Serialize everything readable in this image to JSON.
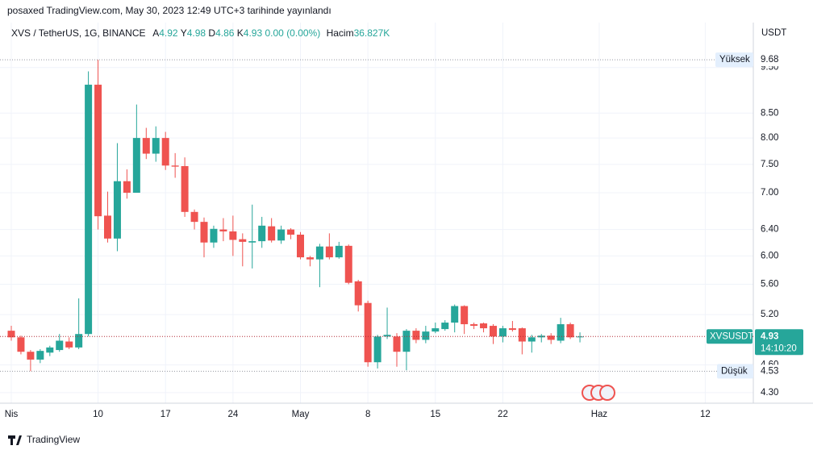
{
  "publisher": "posaxed TradingView.com, May 30, 2023 12:49 UTC+3 tarihinde yayınlandı",
  "footer": "TradingView",
  "chart_data": {
    "type": "candlestick",
    "symbol": "XVS / TetherUS, 1G, BINANCE",
    "ohlc_letters": [
      "A",
      "Y",
      "D",
      "K"
    ],
    "change": "0.00 (0.00%)",
    "volume_label": "Hacim",
    "volume": "36.827K",
    "y_axis_label": "USDT",
    "ticker": "XVSUSDT",
    "countdown": "14:10:20",
    "high_label": "Yüksek",
    "low_label": "Düşük",
    "log": true,
    "grid": true,
    "up_color": "#26a69a",
    "down_color": "#ef5350",
    "categories": [
      "Nis",
      null,
      null,
      null,
      null,
      null,
      null,
      null,
      null,
      "10",
      null,
      null,
      null,
      null,
      null,
      null,
      "17",
      null,
      null,
      null,
      null,
      null,
      null,
      "24",
      null,
      null,
      null,
      null,
      null,
      null,
      "May",
      null,
      null,
      null,
      null,
      null,
      null,
      "8",
      null,
      null,
      null,
      null,
      null,
      null,
      "15",
      null,
      null,
      null,
      null,
      null,
      null,
      "22",
      null,
      null,
      null,
      null,
      null,
      null,
      null,
      null,
      null,
      "Haz",
      null,
      null,
      null,
      null,
      null,
      null,
      null,
      null,
      null,
      null,
      "12"
    ],
    "open": [
      5.0,
      4.92,
      4.75,
      4.66,
      4.74,
      4.77,
      4.87,
      4.8,
      4.96,
      9.11,
      6.62,
      6.26,
      7.2,
      7.0,
      8.0,
      7.7,
      8.0,
      7.48,
      7.47,
      6.68,
      6.52,
      6.2,
      6.4,
      6.37,
      6.25,
      6.2,
      6.22,
      6.45,
      6.23,
      6.4,
      6.32,
      5.98,
      5.95,
      6.14,
      5.98,
      6.15,
      5.64,
      5.35,
      4.63,
      4.93,
      4.93,
      4.75,
      5.0,
      4.89,
      4.99,
      5.02,
      5.1,
      5.31,
      5.08,
      5.09,
      5.06,
      4.93,
      5.03,
      5.03,
      4.87,
      4.92,
      4.94,
      4.88,
      5.08,
      4.92,
      null,
      null,
      null,
      null,
      null,
      null,
      null,
      null,
      null,
      null,
      null,
      null,
      null
    ],
    "high": [
      5.06,
      4.94,
      4.77,
      4.78,
      4.82,
      4.96,
      4.92,
      5.41,
      9.41,
      9.68,
      7.02,
      7.9,
      7.41,
      8.68,
      8.2,
      8.23,
      8.12,
      7.71,
      7.63,
      6.72,
      6.59,
      6.46,
      6.58,
      6.62,
      6.34,
      6.8,
      6.6,
      6.58,
      6.46,
      6.42,
      6.36,
      6.0,
      6.18,
      6.34,
      6.21,
      6.17,
      5.66,
      5.38,
      4.95,
      5.29,
      4.97,
      5.02,
      5.03,
      5.06,
      5.1,
      5.13,
      5.33,
      5.32,
      5.1,
      5.1,
      5.08,
      5.06,
      5.12,
      5.04,
      4.95,
      4.96,
      4.97,
      5.16,
      5.1,
      4.98,
      null,
      null,
      null,
      null,
      null,
      null,
      null,
      null,
      null,
      null,
      null,
      null,
      null
    ],
    "low": [
      4.88,
      4.72,
      4.53,
      4.62,
      4.7,
      4.75,
      4.78,
      4.78,
      4.93,
      6.4,
      6.2,
      6.07,
      6.9,
      7.0,
      7.6,
      7.55,
      7.4,
      7.26,
      6.6,
      6.4,
      5.98,
      6.12,
      6.22,
      6.0,
      5.85,
      5.82,
      6.12,
      6.2,
      6.18,
      6.25,
      5.95,
      5.85,
      5.56,
      5.95,
      5.96,
      5.6,
      5.24,
      4.58,
      4.56,
      4.9,
      4.58,
      4.54,
      4.85,
      4.85,
      4.97,
      5.0,
      4.98,
      4.96,
      5.02,
      4.98,
      4.84,
      4.86,
      4.99,
      4.72,
      4.74,
      4.86,
      4.84,
      4.85,
      4.9,
      4.86,
      null,
      null,
      null,
      null,
      null,
      null,
      null,
      null,
      null,
      null,
      null,
      null,
      null
    ],
    "close": [
      4.92,
      4.75,
      4.66,
      4.76,
      4.8,
      4.88,
      4.8,
      4.96,
      9.11,
      6.61,
      6.26,
      7.2,
      7.0,
      8.0,
      7.7,
      8.0,
      7.48,
      7.46,
      6.68,
      6.52,
      6.2,
      6.41,
      6.37,
      6.24,
      6.21,
      6.22,
      6.46,
      6.23,
      6.4,
      6.32,
      5.98,
      5.95,
      6.14,
      5.98,
      6.15,
      5.62,
      5.32,
      4.63,
      4.93,
      4.95,
      4.75,
      5.0,
      4.89,
      4.99,
      5.03,
      5.1,
      5.31,
      5.08,
      5.06,
      5.03,
      4.93,
      5.03,
      5.01,
      4.87,
      4.92,
      4.94,
      4.89,
      5.08,
      4.92,
      4.93,
      null,
      null,
      null,
      null,
      null,
      null,
      null,
      null,
      null,
      null,
      null,
      null,
      null
    ],
    "ylim": [
      4.19,
      10.6
    ],
    "yticks": [
      {
        "value": 9.5,
        "label": "9.50"
      },
      {
        "value": 8.5,
        "label": "8.50"
      },
      {
        "value": 8,
        "label": "8.00"
      },
      {
        "value": 7.5,
        "label": "7.50"
      },
      {
        "value": 7,
        "label": "7.00"
      },
      {
        "value": 6.4,
        "label": "6.40"
      },
      {
        "value": 6,
        "label": "6.00"
      },
      {
        "value": 5.6,
        "label": "5.60"
      },
      {
        "value": 5.2,
        "label": "5.20"
      },
      {
        "value": 4.6,
        "label": "4.60"
      },
      {
        "value": 4.3,
        "label": "4.30"
      }
    ]
  }
}
